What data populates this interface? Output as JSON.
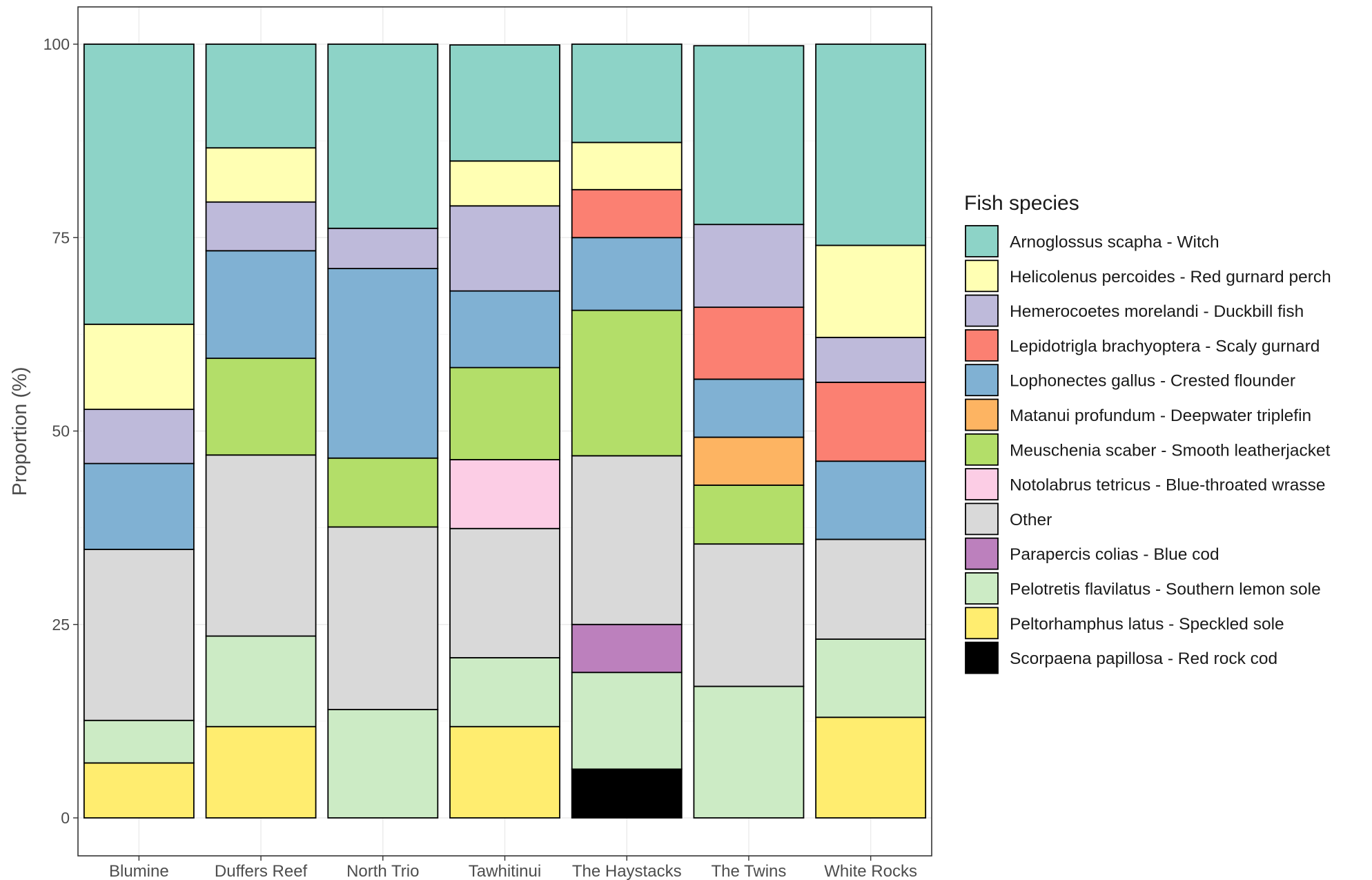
{
  "chart_data": {
    "type": "bar",
    "stacked": true,
    "title": "",
    "xlabel": "",
    "ylabel": "Proportion (%)",
    "ylim": [
      0,
      100
    ],
    "yticks": [
      0,
      25,
      50,
      75,
      100
    ],
    "grid": true,
    "legend_placement": "right",
    "legend_title": "Fish species",
    "categories": [
      "Blumine",
      "Duffers Reef",
      "North Trio",
      "Tawhitinui",
      "The Haystacks",
      "The Twins",
      "White Rocks"
    ],
    "series": [
      {
        "name": "Arnoglossus scapha - Witch",
        "color": "#8DD3C7",
        "values": [
          36.2,
          13.4,
          23.8,
          15.0,
          12.7,
          23.1,
          26.0
        ]
      },
      {
        "name": "Helicolenus percoides - Red gurnard perch",
        "color": "#FFFFB3",
        "values": [
          11.0,
          7.0,
          0,
          5.8,
          6.1,
          0,
          11.9
        ]
      },
      {
        "name": "Hemerocoetes morelandi - Duckbill fish",
        "color": "#BEBADA",
        "values": [
          7.0,
          6.3,
          5.2,
          11.0,
          0,
          10.7,
          5.8
        ]
      },
      {
        "name": "Lepidotrigla brachyoptera - Scaly gurnard",
        "color": "#FB8072",
        "values": [
          0,
          0,
          0,
          0,
          6.2,
          9.3,
          10.2
        ]
      },
      {
        "name": "Lophonectes gallus - Crested flounder",
        "color": "#80B1D3",
        "values": [
          11.1,
          13.9,
          24.5,
          9.9,
          9.4,
          7.5,
          10.1
        ]
      },
      {
        "name": "Matanui profundum - Deepwater triplefin",
        "color": "#FDB462",
        "values": [
          0,
          0,
          0,
          0,
          0,
          6.2,
          0
        ]
      },
      {
        "name": "Meuschenia scaber - Smooth leatherjacket",
        "color": "#B3DE69",
        "values": [
          0,
          12.5,
          8.9,
          11.9,
          18.8,
          7.6,
          0
        ]
      },
      {
        "name": "Notolabrus tetricus - Blue-throated wrasse",
        "color": "#FCCDE5",
        "values": [
          0,
          0,
          0,
          8.9,
          0,
          0,
          0
        ]
      },
      {
        "name": "Other",
        "color": "#D9D9D9",
        "values": [
          22.1,
          23.4,
          23.6,
          16.7,
          21.8,
          18.4,
          12.9
        ]
      },
      {
        "name": "Parapercis colias - Blue cod",
        "color": "#BC80BD",
        "values": [
          0,
          0,
          0,
          0,
          6.2,
          0,
          0
        ]
      },
      {
        "name": "Pelotretis flavilatus - Southern lemon sole",
        "color": "#CCEBC5",
        "values": [
          5.5,
          11.7,
          14.0,
          8.9,
          12.5,
          17.0,
          10.1
        ]
      },
      {
        "name": "Peltorhamphus latus - Speckled sole",
        "color": "#FFED6F",
        "values": [
          7.1,
          11.8,
          0,
          11.8,
          0,
          0,
          13.0
        ]
      },
      {
        "name": "Scorpaena papillosa - Red rock cod",
        "color": "#000000",
        "values": [
          0,
          0,
          0,
          0,
          6.3,
          0,
          0
        ]
      }
    ]
  }
}
